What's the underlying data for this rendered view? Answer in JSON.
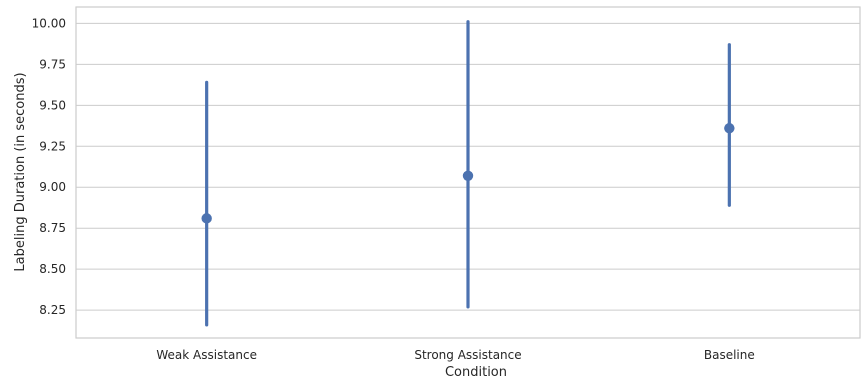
{
  "chart_data": {
    "type": "point",
    "xlabel": "Condition",
    "ylabel": "Labeling Duration (in seconds)",
    "categories": [
      "Weak Assistance",
      "Strong Assistance",
      "Baseline"
    ],
    "values": [
      8.81,
      9.07,
      9.36
    ],
    "ci_low": [
      8.16,
      8.27,
      8.89
    ],
    "ci_high": [
      9.64,
      10.01,
      9.87
    ],
    "ylim": [
      8.08,
      10.1
    ],
    "yticks": [
      "8.25",
      "8.50",
      "8.75",
      "9.00",
      "9.25",
      "9.50",
      "9.75",
      "10.00"
    ],
    "grid": true,
    "color": "#4c72b0"
  }
}
